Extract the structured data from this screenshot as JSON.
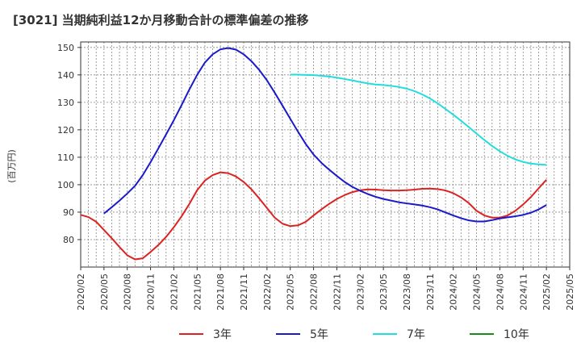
{
  "chart_data": {
    "type": "line",
    "title": "[3021]  当期純利益12か月移動合計の標準偏差の推移",
    "ylabel": "(百万円)",
    "xlabel": "",
    "ylim": [
      70,
      152
    ],
    "yticks": [
      80,
      90,
      100,
      110,
      120,
      130,
      140,
      150
    ],
    "xlim": [
      "2020-02",
      "2025-05"
    ],
    "xticks": [
      "2020/02",
      "2020/05",
      "2020/08",
      "2020/11",
      "2021/02",
      "2021/05",
      "2021/08",
      "2021/11",
      "2022/02",
      "2022/05",
      "2022/08",
      "2022/11",
      "2023/02",
      "2023/05",
      "2023/08",
      "2023/11",
      "2024/02",
      "2024/05",
      "2024/08",
      "2024/11",
      "2025/02",
      "2025/05"
    ],
    "grid": true,
    "legend_position": "bottom",
    "series": [
      {
        "name": "3年",
        "color": "#dd2222",
        "points": [
          [
            "2020-02",
            89
          ],
          [
            "2020-03",
            88.2
          ],
          [
            "2020-04",
            86.5
          ],
          [
            "2020-05",
            83.5
          ],
          [
            "2020-06",
            80.5
          ],
          [
            "2020-07",
            77.3
          ],
          [
            "2020-08",
            74.3
          ],
          [
            "2020-09",
            72.8
          ],
          [
            "2020-10",
            73.2
          ],
          [
            "2020-11",
            75.5
          ],
          [
            "2020-12",
            78
          ],
          [
            "2021-01",
            81
          ],
          [
            "2021-02",
            84.5
          ],
          [
            "2021-03",
            88.5
          ],
          [
            "2021-04",
            93
          ],
          [
            "2021-05",
            98
          ],
          [
            "2021-06",
            101.5
          ],
          [
            "2021-07",
            103.5
          ],
          [
            "2021-08",
            104.5
          ],
          [
            "2021-09",
            104.2
          ],
          [
            "2021-10",
            103
          ],
          [
            "2021-11",
            101
          ],
          [
            "2021-12",
            98.3
          ],
          [
            "2022-01",
            95
          ],
          [
            "2022-02",
            91.5
          ],
          [
            "2022-03",
            88
          ],
          [
            "2022-04",
            85.8
          ],
          [
            "2022-05",
            84.9
          ],
          [
            "2022-06",
            85.2
          ],
          [
            "2022-07",
            86.5
          ],
          [
            "2022-08",
            88.8
          ],
          [
            "2022-09",
            91
          ],
          [
            "2022-10",
            93
          ],
          [
            "2022-11",
            94.8
          ],
          [
            "2022-12",
            96.2
          ],
          [
            "2023-01",
            97.3
          ],
          [
            "2023-02",
            98
          ],
          [
            "2023-03",
            98.3
          ],
          [
            "2023-04",
            98.2
          ],
          [
            "2023-05",
            98
          ],
          [
            "2023-06",
            97.9
          ],
          [
            "2023-07",
            97.9
          ],
          [
            "2023-08",
            98
          ],
          [
            "2023-09",
            98.2
          ],
          [
            "2023-10",
            98.5
          ],
          [
            "2023-11",
            98.6
          ],
          [
            "2023-12",
            98.4
          ],
          [
            "2024-01",
            97.9
          ],
          [
            "2024-02",
            96.9
          ],
          [
            "2024-03",
            95.4
          ],
          [
            "2024-04",
            93.3
          ],
          [
            "2024-05",
            90.5
          ],
          [
            "2024-06",
            88.8
          ],
          [
            "2024-07",
            88
          ],
          [
            "2024-08",
            88
          ],
          [
            "2024-09",
            88.8
          ],
          [
            "2024-10",
            90.5
          ],
          [
            "2024-11",
            92.8
          ],
          [
            "2024-12",
            95.5
          ],
          [
            "2025-01",
            98.7
          ],
          [
            "2025-02",
            101.8
          ]
        ]
      },
      {
        "name": "5年",
        "color": "#1a1acc",
        "points": [
          [
            "2020-05",
            89.5
          ],
          [
            "2020-06",
            91.8
          ],
          [
            "2020-07",
            94.2
          ],
          [
            "2020-08",
            96.8
          ],
          [
            "2020-09",
            99.6
          ],
          [
            "2020-10",
            103.5
          ],
          [
            "2020-11",
            108.2
          ],
          [
            "2020-12",
            113.2
          ],
          [
            "2021-01",
            118.3
          ],
          [
            "2021-02",
            123.5
          ],
          [
            "2021-03",
            129
          ],
          [
            "2021-04",
            134.7
          ],
          [
            "2021-05",
            140
          ],
          [
            "2021-06",
            144.5
          ],
          [
            "2021-07",
            147.5
          ],
          [
            "2021-08",
            149.3
          ],
          [
            "2021-09",
            149.8
          ],
          [
            "2021-10",
            149.2
          ],
          [
            "2021-11",
            147.5
          ],
          [
            "2021-12",
            145
          ],
          [
            "2022-01",
            141.8
          ],
          [
            "2022-02",
            138
          ],
          [
            "2022-03",
            133.5
          ],
          [
            "2022-04",
            128.8
          ],
          [
            "2022-05",
            124
          ],
          [
            "2022-06",
            119.3
          ],
          [
            "2022-07",
            114.8
          ],
          [
            "2022-08",
            111
          ],
          [
            "2022-09",
            108
          ],
          [
            "2022-10",
            105.5
          ],
          [
            "2022-11",
            103.2
          ],
          [
            "2022-12",
            101
          ],
          [
            "2023-01",
            99.2
          ],
          [
            "2023-02",
            97.8
          ],
          [
            "2023-03",
            96.6
          ],
          [
            "2023-04",
            95.6
          ],
          [
            "2023-05",
            94.8
          ],
          [
            "2023-06",
            94.2
          ],
          [
            "2023-07",
            93.6
          ],
          [
            "2023-08",
            93.2
          ],
          [
            "2023-09",
            92.8
          ],
          [
            "2023-10",
            92.4
          ],
          [
            "2023-11",
            91.8
          ],
          [
            "2023-12",
            91
          ],
          [
            "2024-01",
            89.9
          ],
          [
            "2024-02",
            88.8
          ],
          [
            "2024-03",
            87.8
          ],
          [
            "2024-04",
            87
          ],
          [
            "2024-05",
            86.6
          ],
          [
            "2024-06",
            86.6
          ],
          [
            "2024-07",
            87.1
          ],
          [
            "2024-08",
            87.7
          ],
          [
            "2024-09",
            88.1
          ],
          [
            "2024-10",
            88.5
          ],
          [
            "2024-11",
            89
          ],
          [
            "2024-12",
            89.8
          ],
          [
            "2025-01",
            91
          ],
          [
            "2025-02",
            92.6
          ]
        ]
      },
      {
        "name": "7年",
        "color": "#22dddd",
        "points": [
          [
            "2022-05",
            140.1
          ],
          [
            "2022-06",
            140.1
          ],
          [
            "2022-07",
            140
          ],
          [
            "2022-08",
            139.9
          ],
          [
            "2022-09",
            139.7
          ],
          [
            "2022-10",
            139.4
          ],
          [
            "2022-11",
            139
          ],
          [
            "2022-12",
            138.5
          ],
          [
            "2023-01",
            138
          ],
          [
            "2023-02",
            137.4
          ],
          [
            "2023-03",
            136.9
          ],
          [
            "2023-04",
            136.5
          ],
          [
            "2023-05",
            136.3
          ],
          [
            "2023-06",
            136
          ],
          [
            "2023-07",
            135.6
          ],
          [
            "2023-08",
            135
          ],
          [
            "2023-09",
            134.1
          ],
          [
            "2023-10",
            132.9
          ],
          [
            "2023-11",
            131.4
          ],
          [
            "2023-12",
            129.6
          ],
          [
            "2024-01",
            127.6
          ],
          [
            "2024-02",
            125.5
          ],
          [
            "2024-03",
            123.3
          ],
          [
            "2024-04",
            121
          ],
          [
            "2024-05",
            118.6
          ],
          [
            "2024-06",
            116.3
          ],
          [
            "2024-07",
            114.1
          ],
          [
            "2024-08",
            112.2
          ],
          [
            "2024-09",
            110.5
          ],
          [
            "2024-10",
            109.2
          ],
          [
            "2024-11",
            108.3
          ],
          [
            "2024-12",
            107.7
          ],
          [
            "2025-01",
            107.4
          ],
          [
            "2025-02",
            107.2
          ]
        ]
      },
      {
        "name": "10年",
        "color": "#1a8a1a",
        "points": []
      }
    ]
  }
}
